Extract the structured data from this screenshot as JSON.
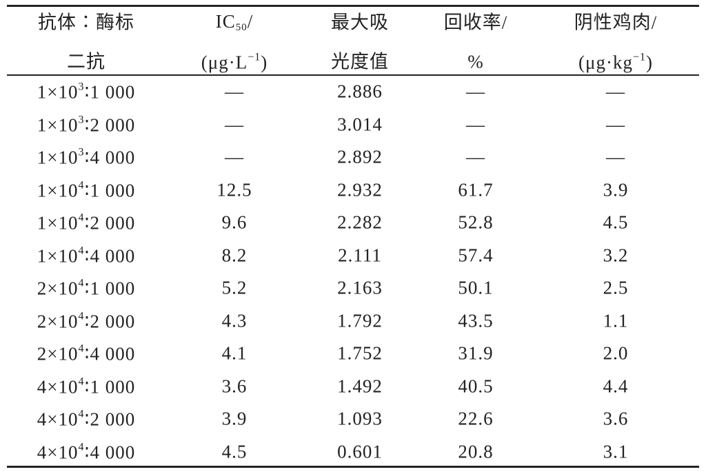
{
  "table": {
    "header": [
      [
        [
          "抗体∶酶标"
        ],
        [
          "二抗"
        ]
      ],
      [
        [
          "IC",
          {
            "sub": "50"
          },
          "/"
        ],
        [
          "(μg·L",
          {
            "sup": "−1"
          },
          ")"
        ]
      ],
      [
        [
          "最大吸"
        ],
        [
          "光度值"
        ]
      ],
      [
        [
          "回收率/"
        ],
        [
          "%"
        ]
      ],
      [
        [
          "阴性鸡肉/"
        ],
        [
          "(μg·kg",
          {
            "sup": "−1"
          },
          ")"
        ]
      ]
    ],
    "rows": [
      [
        [
          "1×10",
          {
            "sup": "3"
          },
          "∶1 000"
        ],
        "—",
        "2.886",
        "—",
        "—"
      ],
      [
        [
          "1×10",
          {
            "sup": "3"
          },
          "∶2 000"
        ],
        "—",
        "3.014",
        "—",
        "—"
      ],
      [
        [
          "1×10",
          {
            "sup": "3"
          },
          "∶4 000"
        ],
        "—",
        "2.892",
        "—",
        "—"
      ],
      [
        [
          "1×10",
          {
            "sup": "4"
          },
          "∶1 000"
        ],
        "12.5",
        "2.932",
        "61.7",
        "3.9"
      ],
      [
        [
          "1×10",
          {
            "sup": "4"
          },
          "∶2 000"
        ],
        "9.6",
        "2.282",
        "52.8",
        "4.5"
      ],
      [
        [
          "1×10",
          {
            "sup": "4"
          },
          "∶4 000"
        ],
        "8.2",
        "2.111",
        "57.4",
        "3.2"
      ],
      [
        [
          "2×10",
          {
            "sup": "4"
          },
          "∶1 000"
        ],
        "5.2",
        "2.163",
        "50.1",
        "2.5"
      ],
      [
        [
          "2×10",
          {
            "sup": "4"
          },
          "∶2 000"
        ],
        "4.3",
        "1.792",
        "43.5",
        "1.1"
      ],
      [
        [
          "2×10",
          {
            "sup": "4"
          },
          "∶4 000"
        ],
        "4.1",
        "1.752",
        "31.9",
        "2.0"
      ],
      [
        [
          "4×10",
          {
            "sup": "4"
          },
          "∶1 000"
        ],
        "3.6",
        "1.492",
        "40.5",
        "4.4"
      ],
      [
        [
          "4×10",
          {
            "sup": "4"
          },
          "∶2 000"
        ],
        "3.9",
        "1.093",
        "22.6",
        "3.6"
      ],
      [
        [
          "4×10",
          {
            "sup": "4"
          },
          "∶4 000"
        ],
        "4.5",
        "0.601",
        "20.8",
        "3.1"
      ]
    ]
  }
}
